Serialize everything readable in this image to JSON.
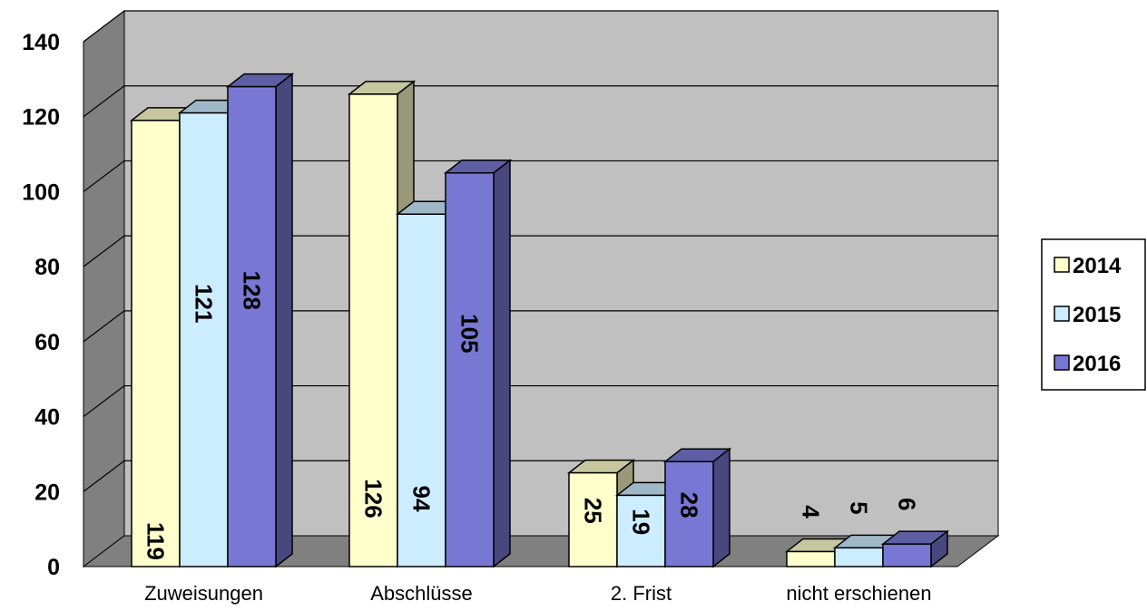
{
  "chart_data": {
    "type": "bar",
    "style": "3d-clustered-column",
    "categories": [
      "Zuweisungen",
      "Abschlüsse",
      "2. Frist",
      "nicht erschienen"
    ],
    "series": [
      {
        "name": "2014",
        "values": [
          119,
          126,
          25,
          4
        ],
        "color": "#FFFFCC"
      },
      {
        "name": "2015",
        "values": [
          121,
          94,
          19,
          5
        ],
        "color": "#CCECFF"
      },
      {
        "name": "2016",
        "values": [
          128,
          105,
          28,
          6
        ],
        "color": "#7878D4"
      }
    ],
    "ylim": [
      0,
      140
    ],
    "yticks": [
      "0",
      "20",
      "40",
      "60",
      "80",
      "100",
      "120",
      "140"
    ],
    "grid": true,
    "legend_position": "right",
    "data_labels": "inside-rotated",
    "wall_color": "#C0C0C0",
    "floor_color": "#808080"
  }
}
